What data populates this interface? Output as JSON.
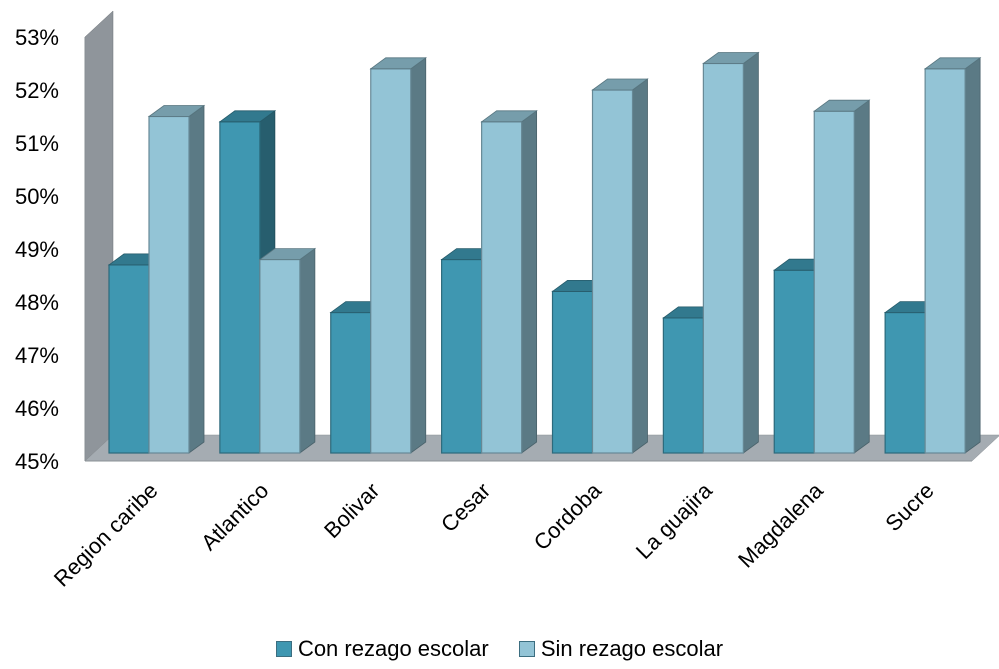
{
  "chart_data": {
    "type": "bar",
    "categories": [
      "Region caribe",
      "Atlantico",
      "Bolivar",
      "Cesar",
      "Cordoba",
      "La guajira",
      "Magdalena",
      "Sucre"
    ],
    "series": [
      {
        "name": "Con rezago escolar",
        "color": "#3f97b1",
        "values": [
          48.7,
          51.4,
          47.8,
          48.8,
          48.2,
          47.7,
          48.6,
          47.8
        ]
      },
      {
        "name": "Sin rezago escolar",
        "color": "#93c4d6",
        "values": [
          51.5,
          48.8,
          52.4,
          51.4,
          52.0,
          52.5,
          51.6,
          52.4
        ]
      }
    ],
    "y_ticks": [
      "45%",
      "46%",
      "47%",
      "48%",
      "49%",
      "50%",
      "51%",
      "52%",
      "53%"
    ],
    "ylim": [
      45,
      53
    ],
    "title": "",
    "xlabel": "",
    "ylabel": "",
    "legend_position": "bottom",
    "style": "3d-column",
    "grid": false
  }
}
